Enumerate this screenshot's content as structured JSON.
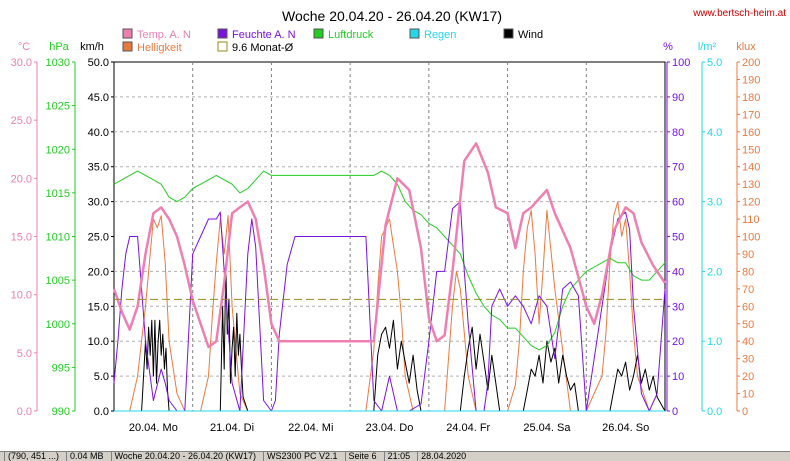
{
  "title": "Woche 20.04.20 - 26.04.20 (KW17)",
  "watermark": "www.bertsch-heim.at",
  "legend": [
    {
      "label": "Temp. A. N",
      "color": "#ef7fb0"
    },
    {
      "label": "Helligkeit",
      "color": "#e87a40"
    },
    {
      "label": "Feuchte A. N",
      "color": "#7a12e0"
    },
    {
      "label": "9.6 Monat-Ø",
      "color": "#9a8a20"
    },
    {
      "label": "Luftdruck",
      "color": "#22cc22"
    },
    {
      "label": "Regen",
      "color": "#22d8e8"
    },
    {
      "label": "Wind",
      "color": "#000000"
    }
  ],
  "axes": {
    "temp": {
      "unit": "°C",
      "color": "#ef7fb0",
      "ticks": [
        "0.0",
        "5.0",
        "10.0",
        "15.0",
        "20.0",
        "25.0",
        "30.0"
      ]
    },
    "pressure": {
      "unit": "hPa",
      "color": "#22cc22",
      "ticks": [
        "990",
        "995",
        "1000",
        "1005",
        "1010",
        "1015",
        "1020",
        "1025",
        "1030"
      ]
    },
    "wind": {
      "unit": "km/h",
      "color": "#000000",
      "ticks": [
        "0.0",
        "5.0",
        "10.0",
        "15.0",
        "20.0",
        "25.0",
        "30.0",
        "35.0",
        "40.0",
        "45.0",
        "50.0"
      ]
    },
    "humidity": {
      "unit": "%",
      "color": "#7a12e0",
      "ticks": [
        "0",
        "10",
        "20",
        "30",
        "40",
        "50",
        "60",
        "70",
        "80",
        "90",
        "100"
      ]
    },
    "rain": {
      "unit": "l/m²",
      "color": "#22d8e8",
      "ticks": [
        "0.0",
        "1.0",
        "2.0",
        "3.0",
        "4.0",
        "5.0"
      ]
    },
    "light": {
      "unit": "klux",
      "color": "#e87a40",
      "ticks": [
        "0",
        "10",
        "20",
        "30",
        "40",
        "50",
        "60",
        "70",
        "80",
        "90",
        "100",
        "110",
        "120",
        "130",
        "140",
        "150",
        "160",
        "170",
        "180",
        "190",
        "200"
      ]
    }
  },
  "days": [
    "20.04.  Mo",
    "21.04.  Di",
    "22.04.  Mi",
    "23.04.  Do",
    "24.04.  Fr",
    "25.04.  Sa",
    "26.04.  So"
  ],
  "chart_data": {
    "type": "line",
    "title": "Woche 20.04.20 - 26.04.20 (KW17)",
    "x_unit": "day index (0 = 20.04. 00:00, 7 = 27.04. 00:00)",
    "xlim": [
      0,
      7
    ],
    "reference_line": {
      "name": "9.6 Monat-Ø",
      "axis": "temp",
      "value": 9.6
    },
    "series": [
      {
        "name": "Temp. A. N",
        "axis": "temp",
        "ylim": [
          0,
          30
        ],
        "x": [
          0,
          0.1,
          0.2,
          0.3,
          0.4,
          0.5,
          0.6,
          0.7,
          0.8,
          0.9,
          1.0,
          1.1,
          1.2,
          1.3,
          1.4,
          1.5,
          1.6,
          1.7,
          1.8,
          1.9,
          2.0,
          2.1,
          2.2,
          2.3,
          3.0,
          3.3,
          3.45,
          3.6,
          3.75,
          3.9,
          4.0,
          4.1,
          4.2,
          4.3,
          4.45,
          4.6,
          4.75,
          4.85,
          5.0,
          5.1,
          5.2,
          5.3,
          5.5,
          5.6,
          5.8,
          5.9,
          6.0,
          6.1,
          6.2,
          6.35,
          6.5,
          6.6,
          6.7,
          6.85,
          7.0
        ],
        "y": [
          10.5,
          8.5,
          7.0,
          9.0,
          13.5,
          17.0,
          17.5,
          16.5,
          15.0,
          12.5,
          9.5,
          7.5,
          5.5,
          6.0,
          11.0,
          17.0,
          17.5,
          18.0,
          16.5,
          12.5,
          7.5,
          6.0,
          6.0,
          6.0,
          6.0,
          6.0,
          16.0,
          20.0,
          19.0,
          14.0,
          8.0,
          6.0,
          6.5,
          12.0,
          21.5,
          23.0,
          20.5,
          17.5,
          17.0,
          14.0,
          17.0,
          17.5,
          19.0,
          17.0,
          14.0,
          11.5,
          9.0,
          7.5,
          10.0,
          15.5,
          17.5,
          17.0,
          14.5,
          12.5,
          11.0
        ]
      },
      {
        "name": "Feuchte A. N",
        "axis": "humidity",
        "ylim": [
          0,
          100
        ],
        "x": [
          0,
          0.05,
          0.1,
          0.15,
          0.2,
          0.3,
          0.4,
          0.5,
          0.6,
          0.65,
          0.7,
          0.8,
          0.9,
          1.0,
          1.1,
          1.2,
          1.3,
          1.35,
          1.4,
          1.5,
          1.6,
          1.7,
          1.75,
          1.8,
          1.9,
          2.0,
          2.05,
          2.1,
          2.2,
          2.3,
          3.0,
          3.2,
          3.3,
          3.4,
          3.5,
          3.6,
          3.75,
          3.9,
          4.0,
          4.1,
          4.2,
          4.3,
          4.4,
          4.45,
          4.5,
          4.6,
          4.7,
          4.75,
          4.8,
          4.9,
          5.0,
          5.1,
          5.2,
          5.3,
          5.4,
          5.5,
          5.6,
          5.7,
          5.8,
          5.9,
          6.0,
          6.1,
          6.2,
          6.3,
          6.4,
          6.5,
          6.55,
          6.6,
          6.7,
          6.8,
          6.9,
          7.0
        ],
        "y": [
          8,
          20,
          35,
          45,
          50,
          50,
          20,
          3,
          12,
          8,
          3,
          0,
          0,
          45,
          50,
          55,
          55,
          57,
          40,
          8,
          0,
          45,
          55,
          47,
          3,
          0,
          3,
          22,
          42,
          50,
          50,
          50,
          3,
          0,
          10,
          0,
          0,
          2,
          20,
          40,
          40,
          58,
          60,
          40,
          25,
          0,
          0,
          8,
          30,
          35,
          30,
          33,
          30,
          25,
          33,
          30,
          15,
          35,
          37,
          33,
          0,
          15,
          30,
          45,
          55,
          57,
          52,
          30,
          5,
          0,
          5,
          35
        ]
      },
      {
        "name": "Luftdruck",
        "axis": "pressure",
        "ylim": [
          990,
          1030
        ],
        "x": [
          0,
          0.1,
          0.2,
          0.3,
          0.4,
          0.5,
          0.6,
          0.7,
          0.8,
          0.9,
          1.0,
          1.1,
          1.2,
          1.3,
          1.4,
          1.5,
          1.6,
          1.7,
          1.8,
          1.9,
          2.0,
          2.2,
          2.5,
          2.8,
          3.0,
          3.3,
          3.4,
          3.5,
          3.6,
          3.7,
          3.8,
          3.9,
          4.0,
          4.1,
          4.2,
          4.3,
          4.4,
          4.5,
          4.6,
          4.7,
          4.8,
          4.9,
          5.0,
          5.1,
          5.2,
          5.3,
          5.4,
          5.5,
          5.6,
          5.7,
          5.8,
          5.9,
          6.0,
          6.1,
          6.2,
          6.3,
          6.4,
          6.5,
          6.6,
          6.7,
          6.8,
          6.9,
          7.0
        ],
        "y": [
          1016.0,
          1016.5,
          1017.0,
          1017.5,
          1017.0,
          1016.5,
          1016.0,
          1014.5,
          1014.0,
          1014.5,
          1015.5,
          1016.0,
          1016.5,
          1017.0,
          1016.5,
          1016.0,
          1015.0,
          1015.5,
          1016.5,
          1017.5,
          1017.0,
          1017.0,
          1017.0,
          1017.0,
          1017.0,
          1017.0,
          1017.5,
          1017.0,
          1016.0,
          1014.0,
          1013.0,
          1012.5,
          1011.5,
          1011.0,
          1010.0,
          1009.0,
          1008.0,
          1005.5,
          1003.5,
          1002.0,
          1001.0,
          1000.5,
          999.5,
          999.5,
          998.5,
          997.5,
          997.0,
          997.5,
          999.0,
          1002.0,
          1004.0,
          1005.0,
          1006.0,
          1006.5,
          1007.0,
          1007.5,
          1007.0,
          1007.0,
          1005.5,
          1005.0,
          1005.0,
          1006.0,
          1007.0
        ]
      },
      {
        "name": "Helligkeit",
        "axis": "light",
        "ylim": [
          0,
          200
        ],
        "x": [
          0,
          0.2,
          0.3,
          0.4,
          0.45,
          0.5,
          0.55,
          0.6,
          0.65,
          0.7,
          0.8,
          0.9,
          1.0,
          1.1,
          1.2,
          1.25,
          1.3,
          1.35,
          1.4,
          1.45,
          1.5,
          1.55,
          1.6,
          1.7,
          1.8,
          2.0,
          2.2,
          2.3,
          3.0,
          3.2,
          3.3,
          3.35,
          3.4,
          3.45,
          3.5,
          3.55,
          3.6,
          3.65,
          3.7,
          3.8,
          4.0,
          4.2,
          4.25,
          4.3,
          4.35,
          4.4,
          4.5,
          4.6,
          4.8,
          5.0,
          5.1,
          5.15,
          5.2,
          5.25,
          5.3,
          5.35,
          5.4,
          5.45,
          5.5,
          5.6,
          5.8,
          6.0,
          6.2,
          6.25,
          6.3,
          6.35,
          6.4,
          6.45,
          6.5,
          6.55,
          6.6,
          6.65,
          6.8,
          7.0
        ],
        "y": [
          0,
          0,
          20,
          60,
          85,
          110,
          105,
          112,
          85,
          40,
          10,
          0,
          0,
          0,
          20,
          55,
          85,
          110,
          90,
          112,
          60,
          35,
          10,
          0,
          0,
          0,
          0,
          0,
          0,
          0,
          35,
          70,
          100,
          105,
          110,
          95,
          80,
          55,
          20,
          0,
          0,
          0,
          30,
          60,
          80,
          70,
          20,
          0,
          0,
          0,
          15,
          40,
          80,
          105,
          115,
          90,
          50,
          80,
          115,
          70,
          0,
          0,
          20,
          45,
          85,
          112,
          120,
          100,
          110,
          80,
          45,
          20,
          0,
          0
        ]
      },
      {
        "name": "Wind",
        "axis": "wind",
        "ylim": [
          0,
          50
        ],
        "x": [
          0,
          0.35,
          0.4,
          0.42,
          0.44,
          0.46,
          0.48,
          0.5,
          0.52,
          0.54,
          0.56,
          0.58,
          0.6,
          0.62,
          0.64,
          0.66,
          0.68,
          0.7,
          0.75,
          1.35,
          1.38,
          1.4,
          1.42,
          1.44,
          1.46,
          1.48,
          1.5,
          1.52,
          1.54,
          1.56,
          1.58,
          1.6,
          1.62,
          1.64,
          1.7,
          3.3,
          3.35,
          3.4,
          3.45,
          3.5,
          3.55,
          3.6,
          3.65,
          3.7,
          3.75,
          3.8,
          3.85,
          3.9,
          4.4,
          4.45,
          4.5,
          4.55,
          4.6,
          4.65,
          4.7,
          4.75,
          4.8,
          4.85,
          4.9,
          5.2,
          5.25,
          5.3,
          5.35,
          5.4,
          5.45,
          5.5,
          5.55,
          5.6,
          5.65,
          5.7,
          5.75,
          5.8,
          5.85,
          5.9,
          6.3,
          6.35,
          6.4,
          6.45,
          6.5,
          6.55,
          6.6,
          6.65,
          6.7,
          6.75,
          6.8,
          6.85,
          6.9,
          7.0
        ],
        "y": [
          0,
          0,
          10,
          6,
          12,
          8,
          13,
          5,
          13,
          4,
          10,
          13,
          8,
          11,
          6,
          9,
          3,
          0,
          0,
          0,
          15,
          6,
          21,
          11,
          16,
          4,
          9,
          12,
          5,
          14,
          8,
          11,
          6,
          2,
          0,
          0,
          8,
          11,
          12,
          9,
          13,
          6,
          10,
          7,
          4,
          8,
          3,
          0,
          0,
          5,
          9,
          12,
          6,
          11,
          7,
          3,
          8,
          4,
          0,
          0,
          3,
          6,
          5,
          8,
          4,
          10,
          7,
          9,
          4,
          8,
          5,
          3,
          4,
          0,
          0,
          3,
          6,
          5,
          7,
          3,
          5,
          8,
          4,
          6,
          3,
          5,
          2,
          0
        ]
      },
      {
        "name": "Regen",
        "axis": "rain",
        "ylim": [
          0,
          5
        ],
        "x": [
          0,
          7
        ],
        "y": [
          0,
          0
        ]
      }
    ]
  },
  "statusbar": [
    "(790, 451 ...)",
    "0.04 MB",
    "Woche 20.04.20 - 26.04.20 (KW17)",
    "WS2300 PC V2.1",
    "Seite 6",
    "21:05",
    "28.04.2020"
  ]
}
